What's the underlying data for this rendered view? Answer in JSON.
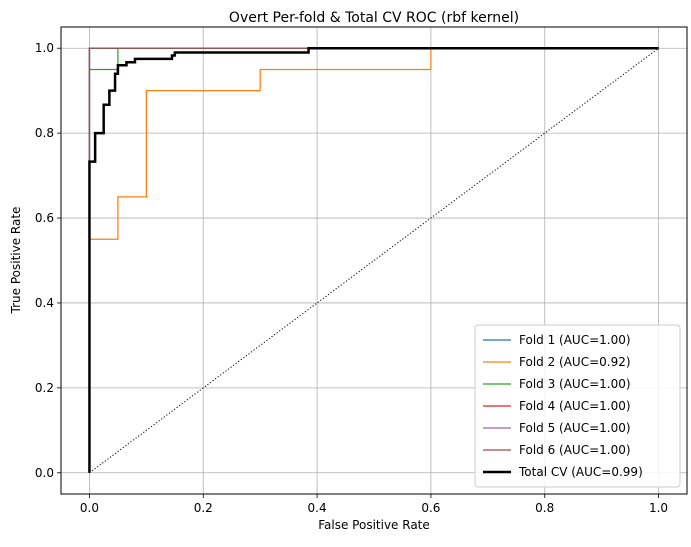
{
  "chart_data": {
    "type": "line",
    "title": "Overt Per-fold & Total CV ROC (rbf kernel)",
    "xlabel": "False Positive Rate",
    "ylabel": "True Positive Rate",
    "xlim": [
      -0.05,
      1.05
    ],
    "ylim": [
      -0.05,
      1.05
    ],
    "xticks": [
      0.0,
      0.2,
      0.4,
      0.6,
      0.8,
      1.0
    ],
    "yticks": [
      0.0,
      0.2,
      0.4,
      0.6,
      0.8,
      1.0
    ],
    "xtick_labels": [
      "0.0",
      "0.2",
      "0.4",
      "0.6",
      "0.8",
      "1.0"
    ],
    "ytick_labels": [
      "0.0",
      "0.2",
      "0.4",
      "0.6",
      "0.8",
      "1.0"
    ],
    "grid": true,
    "legend_position": "lower-right",
    "diagonal": {
      "x": [
        0,
        1
      ],
      "y": [
        0,
        1
      ],
      "color": "#000000",
      "style": "dotted"
    },
    "series": [
      {
        "name": "Fold 1 (AUC=1.00)",
        "color": "#1f77b4",
        "width": 1,
        "x": [
          0,
          0,
          0,
          0.05,
          1
        ],
        "y": [
          0,
          0.75,
          1.0,
          1.0,
          1.0
        ]
      },
      {
        "name": "Fold 2 (AUC=0.92)",
        "color": "#ff7f0e",
        "width": 1,
        "x": [
          0,
          0,
          0.05,
          0.05,
          0.1,
          0.1,
          0.3,
          0.3,
          0.6,
          0.6,
          1.0
        ],
        "y": [
          0,
          0.55,
          0.55,
          0.65,
          0.65,
          0.9,
          0.9,
          0.95,
          0.95,
          1.0,
          1.0
        ]
      },
      {
        "name": "Fold 3 (AUC=1.00)",
        "color": "#2ca02c",
        "width": 1,
        "x": [
          0,
          0,
          0.05,
          0.05,
          1
        ],
        "y": [
          0,
          0.95,
          0.95,
          1.0,
          1.0
        ]
      },
      {
        "name": "Fold 4 (AUC=1.00)",
        "color": "#d62728",
        "width": 1,
        "x": [
          0,
          0,
          1
        ],
        "y": [
          0,
          1.0,
          1.0
        ]
      },
      {
        "name": "Fold 5 (AUC=1.00)",
        "color": "#9467bd",
        "width": 1,
        "x": [
          0,
          0,
          1
        ],
        "y": [
          0,
          1.0,
          1.0
        ]
      },
      {
        "name": "Fold 6 (AUC=1.00)",
        "color": "#8c564b",
        "width": 1,
        "x": [
          0,
          0,
          0.385,
          1
        ],
        "y": [
          0,
          1.0,
          1.0,
          1.0
        ]
      },
      {
        "name": "Total CV (AUC=0.99)",
        "color": "#000000",
        "width": 2,
        "x": [
          0,
          0,
          0.01,
          0.01,
          0.025,
          0.025,
          0.035,
          0.035,
          0.045,
          0.045,
          0.05,
          0.05,
          0.065,
          0.065,
          0.08,
          0.08,
          0.145,
          0.145,
          0.15,
          0.15,
          0.385,
          0.385,
          1.0
        ],
        "y": [
          0,
          0.733,
          0.733,
          0.8,
          0.8,
          0.867,
          0.867,
          0.9,
          0.9,
          0.94,
          0.94,
          0.96,
          0.96,
          0.967,
          0.967,
          0.975,
          0.975,
          0.983,
          0.983,
          0.99,
          0.99,
          1.0,
          1.0
        ]
      }
    ]
  }
}
